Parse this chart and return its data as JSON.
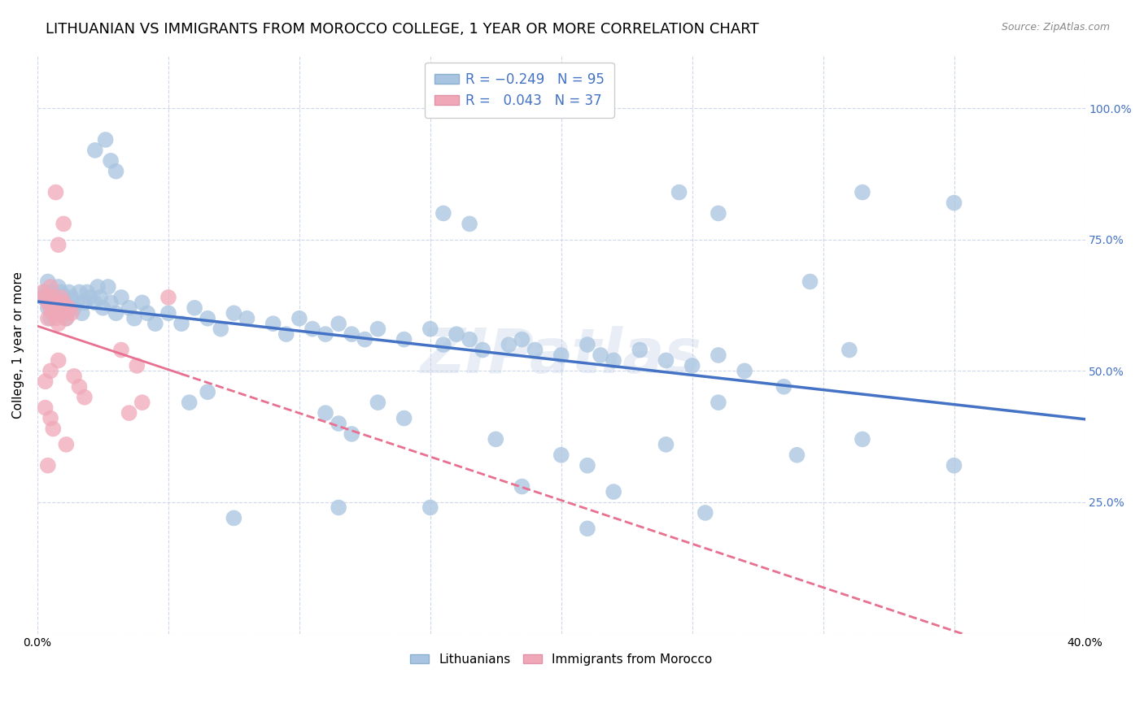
{
  "title": "LITHUANIAN VS IMMIGRANTS FROM MOROCCO COLLEGE, 1 YEAR OR MORE CORRELATION CHART",
  "source": "Source: ZipAtlas.com",
  "ylabel": "College, 1 year or more",
  "xmin": 0.0,
  "xmax": 0.4,
  "ymin": 0.0,
  "ymax": 1.1,
  "yticks": [
    0.0,
    0.25,
    0.5,
    0.75,
    1.0
  ],
  "ytick_labels_right": [
    "",
    "25.0%",
    "50.0%",
    "75.0%",
    "100.0%"
  ],
  "xticks": [
    0.0,
    0.05,
    0.1,
    0.15,
    0.2,
    0.25,
    0.3,
    0.35,
    0.4
  ],
  "xtick_labels": [
    "0.0%",
    "",
    "",
    "",
    "",
    "",
    "",
    "",
    "40.0%"
  ],
  "blue_color": "#a8c4e0",
  "pink_color": "#f0a8b8",
  "blue_line_color": "#4472c4",
  "pink_line_color": "#e87090",
  "watermark": "ZIPatlas",
  "background_color": "#ffffff",
  "grid_color": "#c8d4e8",
  "title_fontsize": 13,
  "axis_label_fontsize": 11,
  "tick_fontsize": 10,
  "blue_scatter": [
    [
      0.002,
      0.64
    ],
    [
      0.003,
      0.65
    ],
    [
      0.004,
      0.62
    ],
    [
      0.004,
      0.67
    ],
    [
      0.005,
      0.63
    ],
    [
      0.005,
      0.6
    ],
    [
      0.006,
      0.65
    ],
    [
      0.006,
      0.62
    ],
    [
      0.007,
      0.64
    ],
    [
      0.007,
      0.61
    ],
    [
      0.008,
      0.66
    ],
    [
      0.008,
      0.63
    ],
    [
      0.009,
      0.65
    ],
    [
      0.009,
      0.62
    ],
    [
      0.01,
      0.64
    ],
    [
      0.01,
      0.61
    ],
    [
      0.011,
      0.63
    ],
    [
      0.011,
      0.6
    ],
    [
      0.012,
      0.65
    ],
    [
      0.012,
      0.62
    ],
    [
      0.013,
      0.64
    ],
    [
      0.014,
      0.62
    ],
    [
      0.015,
      0.63
    ],
    [
      0.016,
      0.65
    ],
    [
      0.017,
      0.61
    ],
    [
      0.018,
      0.63
    ],
    [
      0.019,
      0.65
    ],
    [
      0.02,
      0.64
    ],
    [
      0.022,
      0.63
    ],
    [
      0.023,
      0.66
    ],
    [
      0.024,
      0.64
    ],
    [
      0.025,
      0.62
    ],
    [
      0.027,
      0.66
    ],
    [
      0.028,
      0.63
    ],
    [
      0.03,
      0.61
    ],
    [
      0.032,
      0.64
    ],
    [
      0.035,
      0.62
    ],
    [
      0.037,
      0.6
    ],
    [
      0.04,
      0.63
    ],
    [
      0.042,
      0.61
    ],
    [
      0.045,
      0.59
    ],
    [
      0.05,
      0.61
    ],
    [
      0.055,
      0.59
    ],
    [
      0.06,
      0.62
    ],
    [
      0.065,
      0.6
    ],
    [
      0.07,
      0.58
    ],
    [
      0.075,
      0.61
    ],
    [
      0.08,
      0.6
    ],
    [
      0.09,
      0.59
    ],
    [
      0.095,
      0.57
    ],
    [
      0.1,
      0.6
    ],
    [
      0.105,
      0.58
    ],
    [
      0.11,
      0.57
    ],
    [
      0.115,
      0.59
    ],
    [
      0.12,
      0.57
    ],
    [
      0.125,
      0.56
    ],
    [
      0.13,
      0.58
    ],
    [
      0.14,
      0.56
    ],
    [
      0.15,
      0.58
    ],
    [
      0.155,
      0.55
    ],
    [
      0.16,
      0.57
    ],
    [
      0.165,
      0.56
    ],
    [
      0.17,
      0.54
    ],
    [
      0.18,
      0.55
    ],
    [
      0.185,
      0.56
    ],
    [
      0.19,
      0.54
    ],
    [
      0.2,
      0.53
    ],
    [
      0.21,
      0.55
    ],
    [
      0.215,
      0.53
    ],
    [
      0.22,
      0.52
    ],
    [
      0.23,
      0.54
    ],
    [
      0.24,
      0.52
    ],
    [
      0.25,
      0.51
    ],
    [
      0.26,
      0.53
    ],
    [
      0.27,
      0.5
    ],
    [
      0.022,
      0.92
    ],
    [
      0.026,
      0.94
    ],
    [
      0.028,
      0.9
    ],
    [
      0.03,
      0.88
    ],
    [
      0.155,
      0.8
    ],
    [
      0.165,
      0.78
    ],
    [
      0.245,
      0.84
    ],
    [
      0.26,
      0.8
    ],
    [
      0.315,
      0.84
    ],
    [
      0.35,
      0.82
    ],
    [
      0.058,
      0.44
    ],
    [
      0.065,
      0.46
    ],
    [
      0.11,
      0.42
    ],
    [
      0.115,
      0.4
    ],
    [
      0.12,
      0.38
    ],
    [
      0.13,
      0.44
    ],
    [
      0.14,
      0.41
    ],
    [
      0.175,
      0.37
    ],
    [
      0.2,
      0.34
    ],
    [
      0.21,
      0.32
    ],
    [
      0.24,
      0.36
    ],
    [
      0.29,
      0.34
    ],
    [
      0.315,
      0.37
    ],
    [
      0.35,
      0.32
    ],
    [
      0.295,
      0.67
    ],
    [
      0.31,
      0.54
    ],
    [
      0.075,
      0.22
    ],
    [
      0.115,
      0.24
    ],
    [
      0.15,
      0.24
    ],
    [
      0.185,
      0.28
    ],
    [
      0.22,
      0.27
    ],
    [
      0.255,
      0.23
    ],
    [
      0.21,
      0.2
    ],
    [
      0.26,
      0.44
    ],
    [
      0.285,
      0.47
    ]
  ],
  "pink_scatter": [
    [
      0.002,
      0.65
    ],
    [
      0.003,
      0.64
    ],
    [
      0.004,
      0.63
    ],
    [
      0.004,
      0.6
    ],
    [
      0.005,
      0.66
    ],
    [
      0.005,
      0.62
    ],
    [
      0.006,
      0.64
    ],
    [
      0.006,
      0.61
    ],
    [
      0.007,
      0.63
    ],
    [
      0.007,
      0.6
    ],
    [
      0.008,
      0.62
    ],
    [
      0.008,
      0.59
    ],
    [
      0.009,
      0.64
    ],
    [
      0.009,
      0.61
    ],
    [
      0.01,
      0.63
    ],
    [
      0.011,
      0.6
    ],
    [
      0.012,
      0.62
    ],
    [
      0.013,
      0.61
    ],
    [
      0.007,
      0.84
    ],
    [
      0.01,
      0.78
    ],
    [
      0.008,
      0.74
    ],
    [
      0.04,
      0.44
    ],
    [
      0.035,
      0.42
    ],
    [
      0.05,
      0.64
    ],
    [
      0.004,
      0.32
    ],
    [
      0.011,
      0.36
    ],
    [
      0.032,
      0.54
    ],
    [
      0.038,
      0.51
    ],
    [
      0.003,
      0.48
    ],
    [
      0.005,
      0.5
    ],
    [
      0.008,
      0.52
    ],
    [
      0.014,
      0.49
    ],
    [
      0.016,
      0.47
    ],
    [
      0.018,
      0.45
    ],
    [
      0.003,
      0.43
    ],
    [
      0.005,
      0.41
    ],
    [
      0.006,
      0.39
    ]
  ]
}
